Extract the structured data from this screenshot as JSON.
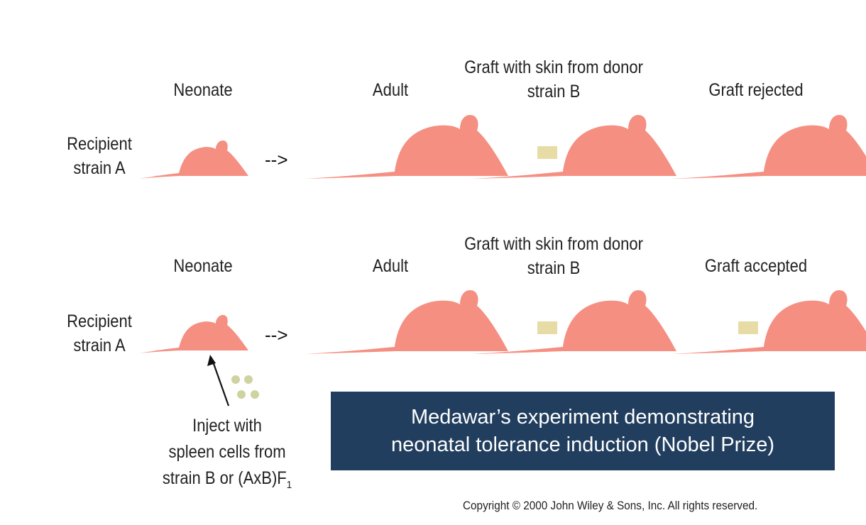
{
  "row1": {
    "side_label": [
      "Recipient",
      "strain A"
    ],
    "stages": {
      "neonate": "Neonate",
      "adult": "Adult",
      "graft": [
        "Graft with skin from donor",
        "strain B"
      ],
      "outcome": "Graft rejected"
    },
    "arrows": {
      "dashed": "-->",
      "solid": "→"
    }
  },
  "row2": {
    "side_label": [
      "Recipient",
      "strain A"
    ],
    "stages": {
      "neonate": "Neonate",
      "adult": "Adult",
      "graft": [
        "Graft with skin from donor",
        "strain B"
      ],
      "outcome": "Graft accepted"
    },
    "arrows": {
      "dashed": "-->",
      "solid": "→"
    }
  },
  "injection": {
    "lines": [
      "Inject with",
      "spleen cells from",
      "strain B or (AxB)F"
    ],
    "subscript": "1"
  },
  "caption": {
    "line1": "Medawar’s experiment demonstrating",
    "line2": "neonatal tolerance induction (Nobel Prize)"
  },
  "copyright": "Copyright © 2000 John Wiley & Sons, Inc.  All rights reserved.",
  "colors": {
    "mouse": "#f58f82",
    "graft_patch": "#e8dca6",
    "spleen_cells": "#cfd3a0",
    "caption_bg": "#213e5e"
  }
}
